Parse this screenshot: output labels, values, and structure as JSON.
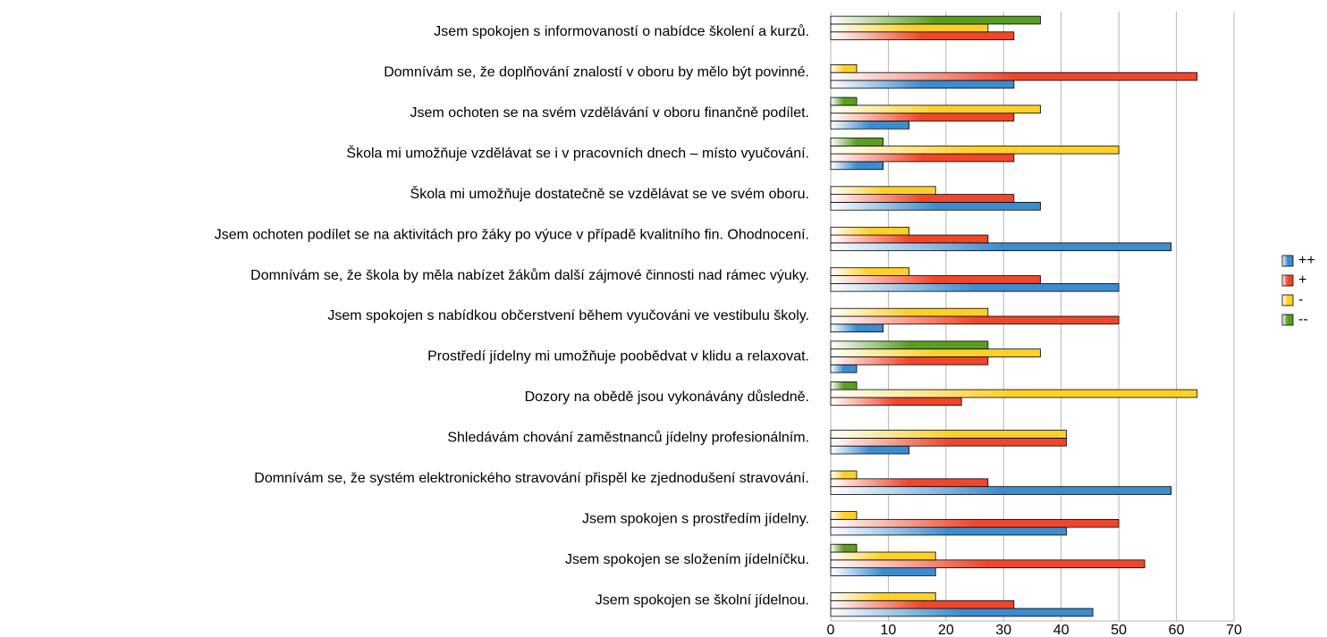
{
  "chart_data": {
    "type": "bar",
    "orientation": "horizontal",
    "categories": [
      "Jsem spokojen s informovaností o nabídce školení a kurzů.",
      "Domnívám se, že doplňování znalostí v oboru by mělo být povinné.",
      "Jsem ochoten se na svém vzdělávání v oboru finančně podílet.",
      "Škola mi umožňuje vzdělávat se i v pracovních dnech – místo vyučování.",
      "Škola mi umožňuje dostatečně se vzdělávat se ve svém oboru.",
      "Jsem ochoten podílet se na aktivitách pro žáky po výuce v případě kvalitního fin. Ohodnocení.",
      "Domnívám se, že  škola by měla nabízet žákům další zájmové činnosti nad rámec výuky.",
      "Jsem spokojen s nabídkou občerstvení během vyučováni ve vestibulu školy.",
      "Prostředí jídelny mi umožňuje poobědvat v klidu a relaxovat.",
      "Dozory na obědě jsou vykonávány důsledně.",
      "Shledávám chování zaměstnanců jídelny profesionálním.",
      "Domnívám se, že systém elektronického stravování přispěl ke zjednodušení stravování.",
      "Jsem spokojen s prostředím jídelny.",
      "Jsem spokojen se složením jídelníčku.",
      "Jsem spokojen se školní jídelnou."
    ],
    "series": [
      {
        "name": "++",
        "color": "#3c8cd0",
        "values": [
          0,
          31.8,
          13.6,
          9.1,
          36.4,
          59.1,
          50,
          9.1,
          4.5,
          0,
          13.6,
          59.1,
          40.9,
          18.2,
          45.5
        ]
      },
      {
        "name": "+",
        "color": "#f0462a",
        "values": [
          31.8,
          63.6,
          31.8,
          31.8,
          31.8,
          27.3,
          36.4,
          50,
          27.3,
          22.7,
          40.9,
          27.3,
          50,
          54.5,
          31.8
        ]
      },
      {
        "name": "-",
        "color": "#ffd028",
        "values": [
          27.3,
          4.5,
          36.4,
          50,
          18.2,
          13.6,
          13.6,
          27.3,
          36.4,
          63.6,
          40.9,
          4.5,
          4.5,
          18.2,
          18.2
        ]
      },
      {
        "name": "--",
        "color": "#5a9e22",
        "values": [
          36.4,
          0,
          4.5,
          9.1,
          0,
          0,
          0,
          0,
          27.3,
          4.5,
          0,
          0,
          0,
          4.5,
          0
        ]
      }
    ],
    "xlim": [
      0,
      70
    ],
    "xticks": [
      0,
      10,
      20,
      30,
      40,
      50,
      60,
      70
    ],
    "grid": true,
    "legend": "right"
  }
}
